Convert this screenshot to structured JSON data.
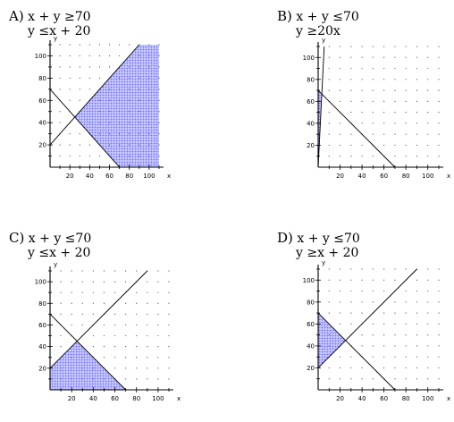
{
  "chart_data": [
    {
      "type": "region",
      "choice": "A)",
      "inequalities": [
        "x + y ≥70",
        "y ≤x + 20"
      ],
      "xlabel": "x",
      "ylabel": "y",
      "xlim": [
        0,
        110
      ],
      "ylim": [
        0,
        110
      ],
      "xticks": [
        20,
        40,
        60,
        80,
        100
      ],
      "yticks": [
        20,
        40,
        60,
        80,
        100
      ],
      "boundaries": [
        {
          "name": "x + y = 70",
          "points": [
            [
              0,
              70
            ],
            [
              70,
              0
            ]
          ]
        },
        {
          "name": "y = x + 20",
          "points": [
            [
              0,
              20
            ],
            [
              90,
              110
            ]
          ]
        }
      ],
      "shaded_region": [
        [
          25,
          45
        ],
        [
          70,
          0
        ],
        [
          110,
          0
        ],
        [
          110,
          110
        ],
        [
          90,
          110
        ]
      ]
    },
    {
      "type": "region",
      "choice": "B)",
      "inequalities": [
        "x + y ≤70",
        "y ≥20x"
      ],
      "xlabel": "x",
      "ylabel": "y",
      "xlim": [
        0,
        110
      ],
      "ylim": [
        0,
        110
      ],
      "xticks": [
        20,
        40,
        60,
        80,
        100
      ],
      "yticks": [
        20,
        40,
        60,
        80,
        100
      ],
      "boundaries": [
        {
          "name": "x + y = 70",
          "points": [
            [
              0,
              70
            ],
            [
              70,
              0
            ]
          ]
        },
        {
          "name": "y = 20x",
          "points": [
            [
              0,
              0
            ],
            [
              5.5,
              110
            ]
          ]
        }
      ],
      "shaded_region": [
        [
          0,
          0
        ],
        [
          3.33,
          66.67
        ],
        [
          0,
          70
        ]
      ]
    },
    {
      "type": "region",
      "choice": "C)",
      "inequalities": [
        "x + y ≤70",
        "y ≤x + 20"
      ],
      "xlabel": "x",
      "ylabel": "y",
      "xlim": [
        0,
        110
      ],
      "ylim": [
        0,
        110
      ],
      "xticks": [
        20,
        40,
        60,
        80,
        100
      ],
      "yticks": [
        20,
        40,
        60,
        80,
        100
      ],
      "boundaries": [
        {
          "name": "x + y = 70",
          "points": [
            [
              0,
              70
            ],
            [
              70,
              0
            ]
          ]
        },
        {
          "name": "y = x + 20",
          "points": [
            [
              0,
              20
            ],
            [
              90,
              110
            ]
          ]
        }
      ],
      "shaded_region": [
        [
          0,
          0
        ],
        [
          0,
          20
        ],
        [
          25,
          45
        ],
        [
          70,
          0
        ]
      ]
    },
    {
      "type": "region",
      "choice": "D)",
      "inequalities": [
        "x + y ≤70",
        "y ≥x + 20"
      ],
      "xlabel": "x",
      "ylabel": "y",
      "xlim": [
        0,
        110
      ],
      "ylim": [
        0,
        110
      ],
      "xticks": [
        20,
        40,
        60,
        80,
        100
      ],
      "yticks": [
        20,
        40,
        60,
        80,
        100
      ],
      "boundaries": [
        {
          "name": "x + y = 70",
          "points": [
            [
              0,
              70
            ],
            [
              70,
              0
            ]
          ]
        },
        {
          "name": "y = x + 20",
          "points": [
            [
              0,
              20
            ],
            [
              90,
              110
            ]
          ]
        }
      ],
      "shaded_region": [
        [
          0,
          20
        ],
        [
          25,
          45
        ],
        [
          0,
          70
        ]
      ]
    }
  ],
  "colors": {
    "shade": "#6f6fff",
    "shade_fill": "#c9c9ff",
    "line": "#000000"
  }
}
